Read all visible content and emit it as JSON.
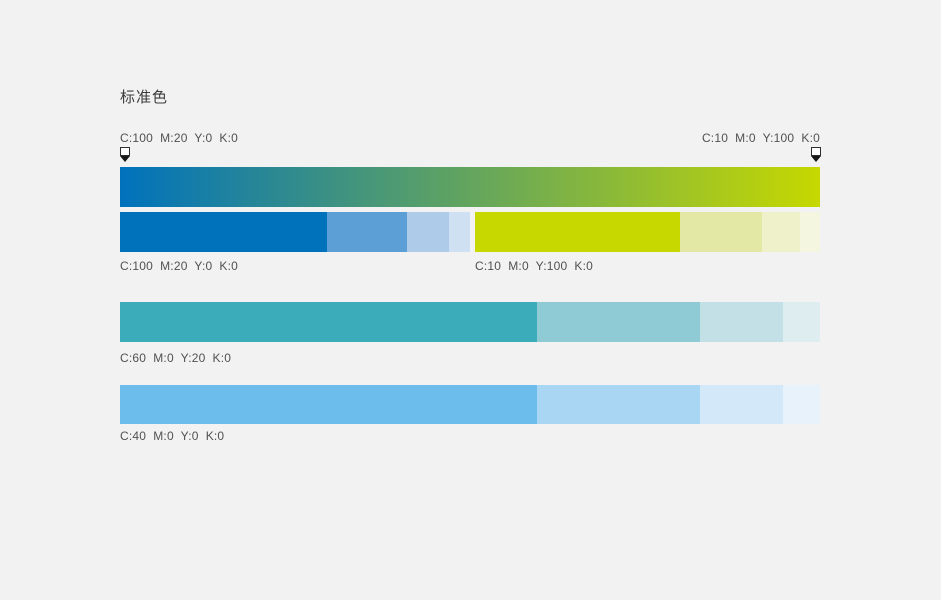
{
  "page": {
    "title": "标准色",
    "background_color": "#f2f2f3"
  },
  "gradient": {
    "start_label": "C:100  M:20  Y:0  K:0",
    "end_label": "C:10  M:0  Y:100  K:0",
    "start_color": "#0072BC",
    "end_color": "#C6D800"
  },
  "palettes": {
    "blue": {
      "label": "C:100  M:20  Y:0  K:0",
      "tints": [
        {
          "color": "#0072BC",
          "width_pct": 59.0
        },
        {
          "color": "#5C9FD6",
          "width_pct": 22.9
        },
        {
          "color": "#AECBE9",
          "width_pct": 12.1
        },
        {
          "color": "#D0E0F3",
          "width_pct": 6.0
        }
      ]
    },
    "green": {
      "label": "C:10  M:0  Y:100  K:0",
      "tints": [
        {
          "color": "#C6D800",
          "width_pct": 59.4
        },
        {
          "color": "#E3E9A4",
          "width_pct": 23.8
        },
        {
          "color": "#EFF1CA",
          "width_pct": 11.0
        },
        {
          "color": "#F5F6E0",
          "width_pct": 5.8
        }
      ]
    },
    "teal": {
      "label": "C:60  M:0  Y:20  K:0",
      "tints": [
        {
          "color": "#3BACB9",
          "width_pct": 59.6
        },
        {
          "color": "#8FCBD4",
          "width_pct": 23.3
        },
        {
          "color": "#C3E0E6",
          "width_pct": 11.8
        },
        {
          "color": "#DEEDEF",
          "width_pct": 5.3
        }
      ]
    },
    "sky": {
      "label": "C:40  M:0  Y:0  K:0",
      "tints": [
        {
          "color": "#6CBDEB",
          "width_pct": 59.6
        },
        {
          "color": "#A9D6F2",
          "width_pct": 23.3
        },
        {
          "color": "#D3E8F8",
          "width_pct": 11.8
        },
        {
          "color": "#E7F2FB",
          "width_pct": 5.3
        }
      ]
    }
  }
}
